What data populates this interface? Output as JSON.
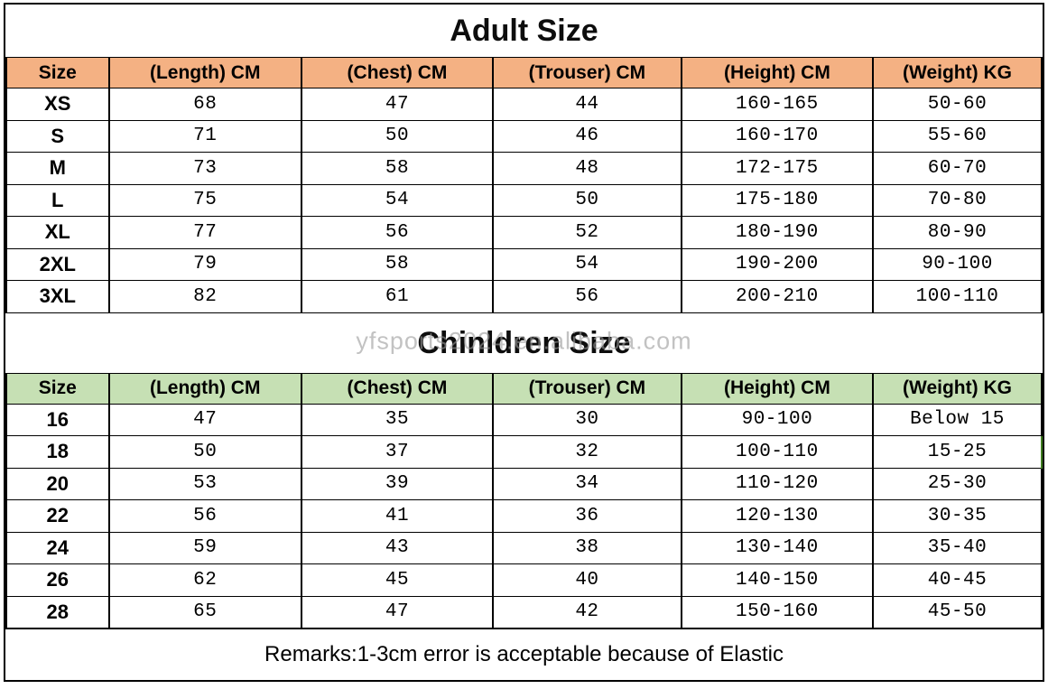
{
  "adult": {
    "title": "Adult Size",
    "headers": [
      "Size",
      "(Length) CM",
      "(Chest) CM",
      "(Trouser) CM",
      "(Height) CM",
      "(Weight) KG"
    ],
    "rows": [
      [
        "XS",
        "68",
        "47",
        "44",
        "160-165",
        "50-60"
      ],
      [
        "S",
        "71",
        "50",
        "46",
        "160-170",
        "55-60"
      ],
      [
        "M",
        "73",
        "58",
        "48",
        "172-175",
        "60-70"
      ],
      [
        "L",
        "75",
        "54",
        "50",
        "175-180",
        "70-80"
      ],
      [
        "XL",
        "77",
        "56",
        "52",
        "180-190",
        "80-90"
      ],
      [
        "2XL",
        "79",
        "58",
        "54",
        "190-200",
        "90-100"
      ],
      [
        "3XL",
        "82",
        "61",
        "56",
        "200-210",
        "100-110"
      ]
    ]
  },
  "children": {
    "title": "Chinldren Size",
    "watermark": "yfsports2024.en.alibaba.com",
    "headers": [
      "Size",
      "(Length) CM",
      "(Chest) CM",
      "(Trouser) CM",
      "(Height) CM",
      "(Weight) KG"
    ],
    "rows": [
      [
        "16",
        "47",
        "35",
        "30",
        "90-100",
        "Below 15"
      ],
      [
        "18",
        "50",
        "37",
        "32",
        "100-110",
        "15-25"
      ],
      [
        "20",
        "53",
        "39",
        "34",
        "110-120",
        "25-30"
      ],
      [
        "22",
        "56",
        "41",
        "36",
        "120-130",
        "30-35"
      ],
      [
        "24",
        "59",
        "43",
        "38",
        "130-140",
        "35-40"
      ],
      [
        "26",
        "62",
        "45",
        "40",
        "140-150",
        "40-45"
      ],
      [
        "28",
        "65",
        "47",
        "42",
        "150-160",
        "45-50"
      ]
    ]
  },
  "remarks": "Remarks:1-3cm error is acceptable because of Elastic",
  "colors": {
    "adult_header_bg": "#F4B183",
    "children_header_bg": "#C6E0B4",
    "watermark": "#9a9a9a",
    "artifact_green": "#3f7d20"
  }
}
